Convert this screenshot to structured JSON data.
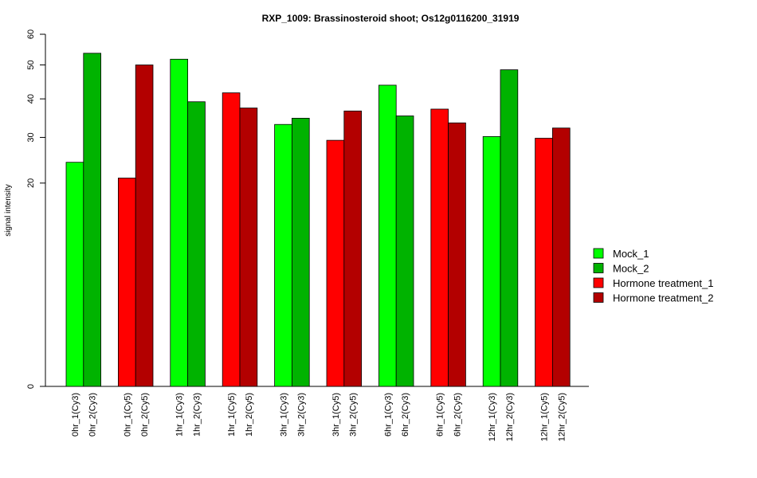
{
  "chart_data": {
    "type": "bar",
    "title": "RXP_1009: Brassinosteroid shoot; Os12g0116200_31919",
    "xlabel": "",
    "ylabel": "signal intensity",
    "ylim": [
      0,
      60
    ],
    "y_scale": "sqrt",
    "y_ticks": [
      0,
      20,
      30,
      40,
      50,
      60
    ],
    "grid": false,
    "legend_position": "right",
    "colors": {
      "Mock_1": "#00ff00",
      "Mock_2": "#00b300",
      "Hormone treatment_1": "#ff0000",
      "Hormone treatment_2": "#b30000"
    },
    "legend": [
      "Mock_1",
      "Mock_2",
      "Hormone treatment_1",
      "Hormone treatment_2"
    ],
    "bars": [
      {
        "label": "0hr_1(Cy3)",
        "value": 24.3,
        "series": "Mock_1"
      },
      {
        "label": "0hr_2(Cy3)",
        "value": 53.7,
        "series": "Mock_2"
      },
      {
        "label": "0hr_1(Cy5)",
        "value": 21.0,
        "series": "Hormone treatment_1"
      },
      {
        "label": "0hr_2(Cy5)",
        "value": 50.0,
        "series": "Hormone treatment_2"
      },
      {
        "label": "1hr_1(Cy3)",
        "value": 51.8,
        "series": "Mock_1"
      },
      {
        "label": "1hr_2(Cy3)",
        "value": 39.2,
        "series": "Mock_2"
      },
      {
        "label": "1hr_1(Cy5)",
        "value": 41.7,
        "series": "Hormone treatment_1"
      },
      {
        "label": "1hr_2(Cy5)",
        "value": 37.5,
        "series": "Hormone treatment_2"
      },
      {
        "label": "3hr_1(Cy3)",
        "value": 33.2,
        "series": "Mock_1"
      },
      {
        "label": "3hr_2(Cy3)",
        "value": 34.8,
        "series": "Mock_2"
      },
      {
        "label": "3hr_1(Cy5)",
        "value": 29.3,
        "series": "Hormone treatment_1"
      },
      {
        "label": "3hr_2(Cy5)",
        "value": 36.7,
        "series": "Hormone treatment_2"
      },
      {
        "label": "6hr_1(Cy3)",
        "value": 43.9,
        "series": "Mock_1"
      },
      {
        "label": "6hr_2(Cy3)",
        "value": 35.4,
        "series": "Mock_2"
      },
      {
        "label": "6hr_1(Cy5)",
        "value": 37.2,
        "series": "Hormone treatment_1"
      },
      {
        "label": "6hr_2(Cy5)",
        "value": 33.6,
        "series": "Hormone treatment_2"
      },
      {
        "label": "12hr_1(Cy3)",
        "value": 30.2,
        "series": "Mock_1"
      },
      {
        "label": "12hr_2(Cy3)",
        "value": 48.5,
        "series": "Mock_2"
      },
      {
        "label": "12hr_1(Cy5)",
        "value": 29.8,
        "series": "Hormone treatment_1"
      },
      {
        "label": "12hr_2(Cy5)",
        "value": 32.3,
        "series": "Hormone treatment_2"
      }
    ]
  }
}
